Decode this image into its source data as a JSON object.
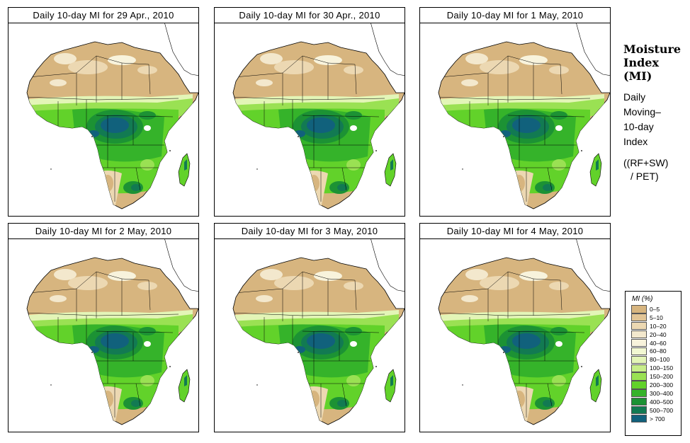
{
  "panels": [
    {
      "title": "Daily 10-day MI for 29 Apr., 2010"
    },
    {
      "title": "Daily 10-day MI for 30 Apr., 2010"
    },
    {
      "title": "Daily 10-day MI for 1 May, 2010"
    },
    {
      "title": "Daily 10-day MI for 2 May, 2010"
    },
    {
      "title": "Daily 10-day MI for 3 May, 2010"
    },
    {
      "title": "Daily 10-day MI for 4 May, 2010"
    }
  ],
  "side": {
    "title_line1": "Moisture",
    "title_line2": "Index",
    "title_line3": "(MI)",
    "sub_line1": "Daily",
    "sub_line2": "Moving–",
    "sub_line3": "10-day",
    "sub_line4": "Index",
    "formula_line1": "((RF+SW)",
    "formula_line2": "/ PET)"
  },
  "legend": {
    "title": "MI (%)",
    "items": [
      {
        "label": "0–5",
        "color": "#d7b57f"
      },
      {
        "label": "5–10",
        "color": "#e2c596"
      },
      {
        "label": "10–20",
        "color": "#ecd8b2"
      },
      {
        "label": "20–40",
        "color": "#f3e8cd"
      },
      {
        "label": "40–60",
        "color": "#f8f3dc"
      },
      {
        "label": "60–80",
        "color": "#f2f8d2"
      },
      {
        "label": "80–100",
        "color": "#e3f5b7"
      },
      {
        "label": "100–150",
        "color": "#c8ee8a"
      },
      {
        "label": "150–200",
        "color": "#9ae153"
      },
      {
        "label": "200–300",
        "color": "#62d22a"
      },
      {
        "label": "300–400",
        "color": "#35b32a"
      },
      {
        "label": "400–500",
        "color": "#1c9234"
      },
      {
        "label": "500–700",
        "color": "#127a52"
      },
      {
        "label": "> 700",
        "color": "#11617c"
      }
    ]
  }
}
